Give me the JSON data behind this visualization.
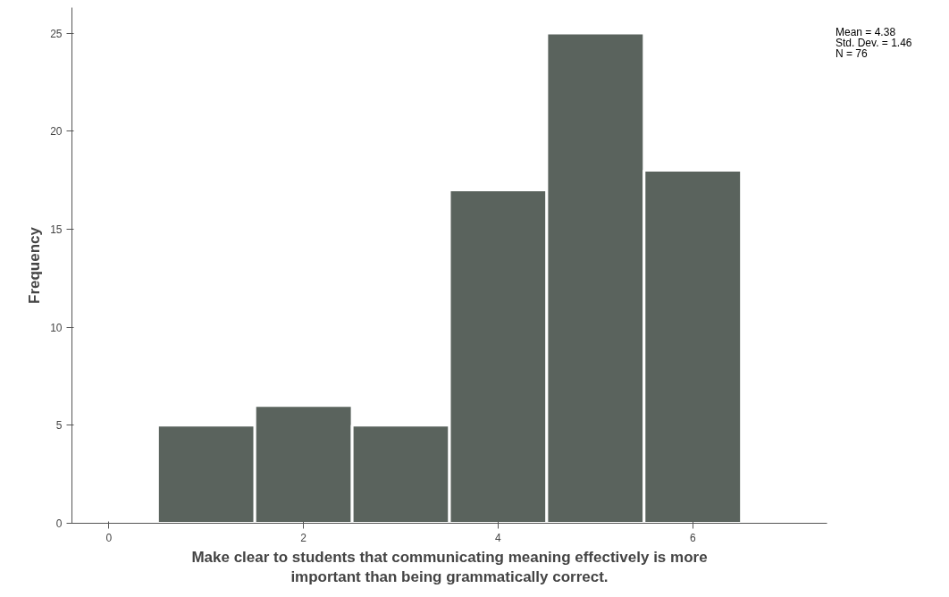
{
  "chart_data": {
    "type": "histogram",
    "xlabel": "Make clear to students that communicating meaning effectively is more important than being grammatically correct.",
    "ylabel": "Frequency",
    "bins": [
      0.5,
      1.5,
      2.5,
      3.5,
      4.5,
      5.5,
      6.5
    ],
    "values": [
      5,
      6,
      5,
      17,
      25,
      18
    ],
    "color": "#5a635d",
    "xlim": [
      -0.38,
      7.38
    ],
    "ylim": [
      0,
      26.3
    ],
    "xticks": [
      0,
      2,
      4,
      6
    ],
    "yticks": [
      0,
      5,
      10,
      15,
      20,
      25
    ],
    "grid": false,
    "annotations": [
      "Mean = 4.38",
      "Std. Dev. = 1.46",
      "N = 76"
    ]
  }
}
